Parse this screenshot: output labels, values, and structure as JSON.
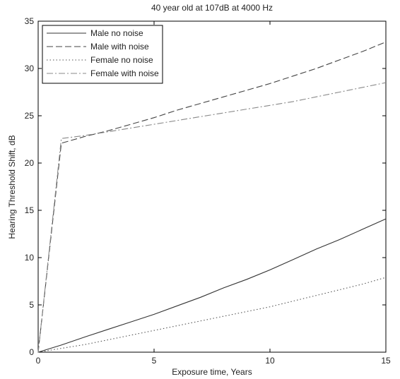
{
  "chart_data": {
    "type": "line",
    "title": "40 year old at 107dB at 4000 Hz",
    "xlabel": "Exposure time, Years",
    "ylabel": "Hearing Threshold Shift, dB",
    "xlim": [
      0,
      15
    ],
    "ylim": [
      0,
      35
    ],
    "xticks": [
      0,
      5,
      10,
      15
    ],
    "yticks": [
      0,
      5,
      10,
      15,
      20,
      25,
      30,
      35
    ],
    "grid": false,
    "legend_position": "top-left",
    "series": [
      {
        "name": "Male no noise",
        "style": "solid",
        "color": "#333333",
        "x": [
          0,
          1,
          2,
          3,
          4,
          5,
          6,
          7,
          8,
          9,
          10,
          11,
          12,
          13,
          14,
          15
        ],
        "y": [
          0,
          0.75,
          1.6,
          2.4,
          3.2,
          4.0,
          4.9,
          5.8,
          6.8,
          7.7,
          8.7,
          9.8,
          10.9,
          11.9,
          13.0,
          14.1
        ]
      },
      {
        "name": "Male with noise",
        "style": "dashed",
        "color": "#444444",
        "x": [
          0,
          1,
          2,
          3,
          4,
          5,
          6,
          7,
          8,
          9,
          10,
          11,
          12,
          13,
          14,
          15
        ],
        "y": [
          0,
          22.1,
          22.8,
          23.4,
          24.1,
          24.8,
          25.6,
          26.3,
          27.0,
          27.7,
          28.4,
          29.2,
          30.0,
          30.9,
          31.8,
          32.8
        ]
      },
      {
        "name": "Female no noise",
        "style": "dotted",
        "color": "#555555",
        "x": [
          0,
          1,
          2,
          3,
          4,
          5,
          6,
          7,
          8,
          9,
          10,
          11,
          12,
          13,
          14,
          15
        ],
        "y": [
          0,
          0.4,
          0.8,
          1.3,
          1.8,
          2.3,
          2.8,
          3.3,
          3.8,
          4.3,
          4.8,
          5.4,
          6.0,
          6.6,
          7.2,
          7.9
        ]
      },
      {
        "name": "Female with noise",
        "style": "dashdot",
        "color": "#888888",
        "x": [
          0,
          1,
          2,
          3,
          4,
          5,
          6,
          7,
          8,
          9,
          10,
          11,
          12,
          13,
          14,
          15
        ],
        "y": [
          0,
          22.6,
          22.9,
          23.3,
          23.7,
          24.1,
          24.5,
          24.9,
          25.3,
          25.7,
          26.1,
          26.5,
          27.0,
          27.5,
          28.0,
          28.5
        ]
      }
    ]
  }
}
